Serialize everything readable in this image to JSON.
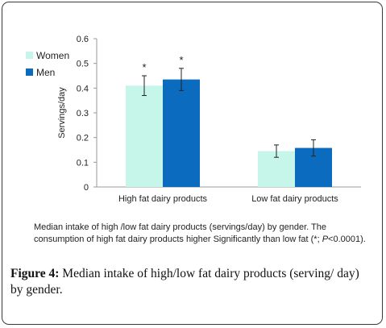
{
  "chart_data": {
    "type": "bar",
    "categories": [
      "High fat dairy products",
      "Low fat dairy products"
    ],
    "series": [
      {
        "name": "Women",
        "color": "#c6f5ea",
        "values": [
          0.41,
          0.145
        ],
        "error": [
          0.04,
          0.025
        ]
      },
      {
        "name": "Men",
        "color": "#0b6cbf",
        "values": [
          0.435,
          0.158
        ],
        "error": [
          0.045,
          0.033
        ]
      }
    ],
    "significance": [
      "*",
      "*",
      "",
      ""
    ],
    "ylabel": "Servings/day",
    "xlabel": "",
    "ylim": [
      0,
      0.6
    ],
    "yticks": [
      "0",
      "0.1",
      "0.2",
      "0.3",
      "0.4",
      "0.5",
      "0.6"
    ],
    "grid": false,
    "legend_position": "top-left"
  },
  "note": {
    "text": "Median intake of high /low fat dairy products (servings/day) by gender. The consumption of high fat dairy products higher Significantly  than low fat (*; ",
    "p_italic": "P",
    "p_rest": "<0.0001)."
  },
  "caption": {
    "label": "Figure 4:",
    "text": " Median intake of high/low fat dairy products (serving/ day) by gender."
  }
}
